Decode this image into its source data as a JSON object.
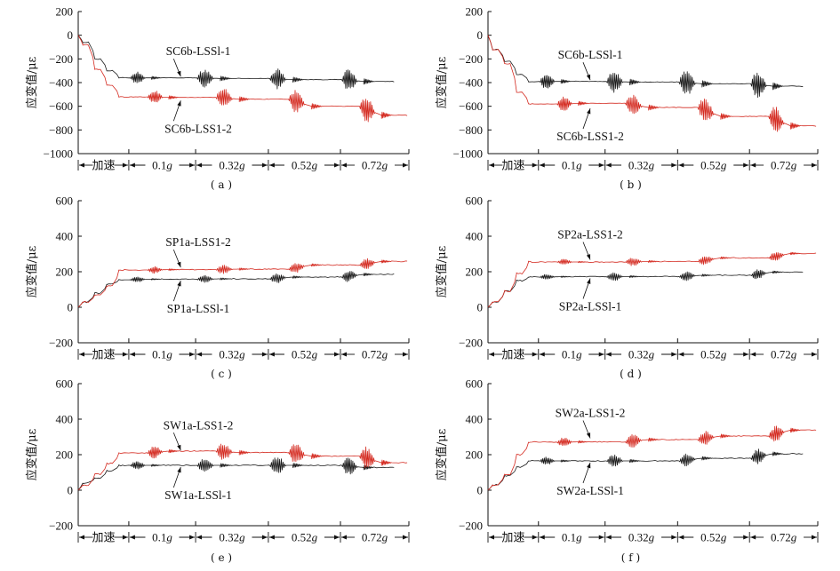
{
  "figure": {
    "ylabel": "应变值/με",
    "phases": [
      "加速",
      "0.1g",
      "0.32g",
      "0.52g",
      "0.72g"
    ],
    "colors": {
      "series1": "#1a1a1a",
      "series2": "#d42a20"
    }
  },
  "chart_data": [
    {
      "id": "a",
      "type": "line",
      "caption": "( a )",
      "ylabel": "应变值/με",
      "ylim": [
        -1000,
        200
      ],
      "yticks": [
        "200",
        "0",
        "-200",
        "-400",
        "-600",
        "-800",
        "-1000"
      ],
      "ytick_values": [
        200,
        0,
        -200,
        -400,
        -600,
        -800,
        -1000
      ],
      "xlabel_segments": [
        "加速",
        "0.1g",
        "0.32g",
        "0.52g",
        "0.72g"
      ],
      "series": [
        {
          "name": "SC6b-LSSl-1",
          "color": "#1a1a1a",
          "start": 0,
          "ramp_levels": [
            -60,
            -200,
            -300,
            -360
          ],
          "phase_levels": [
            -360,
            -365,
            -375,
            -390
          ],
          "burst_amplitude": [
            130,
            200,
            220,
            240
          ],
          "end_value": -395
        },
        {
          "name": "SC6b-LSS1-2",
          "color": "#d42a20",
          "start": 0,
          "ramp_levels": [
            -80,
            -290,
            -420,
            -520
          ],
          "phase_levels": [
            -525,
            -540,
            -600,
            -675
          ],
          "burst_amplitude": [
            150,
            220,
            240,
            280
          ],
          "end_value": -680
        }
      ],
      "annotations": [
        {
          "text": "SC6b-LSSl-1",
          "series": "SC6b-LSSl-1"
        },
        {
          "text": "SC6b-LSS1-2",
          "series": "SC6b-LSS1-2"
        }
      ]
    },
    {
      "id": "b",
      "type": "line",
      "caption": "( b )",
      "ylabel": "应变值/με",
      "ylim": [
        -1000,
        200
      ],
      "yticks": [
        "200",
        "0",
        "-200",
        "-400",
        "-600",
        "-800",
        "-1000"
      ],
      "ytick_values": [
        200,
        0,
        -200,
        -400,
        -600,
        -800,
        -1000
      ],
      "xlabel_segments": [
        "加速",
        "0.1g",
        "0.32g",
        "0.52g",
        "0.72g"
      ],
      "series": [
        {
          "name": "SC6b-LSSl-1",
          "color": "#1a1a1a",
          "start": 0,
          "ramp_levels": [
            -120,
            -220,
            -330,
            -390
          ],
          "phase_levels": [
            -390,
            -395,
            -410,
            -430
          ],
          "burst_amplitude": [
            170,
            250,
            280,
            300
          ],
          "end_value": -435
        },
        {
          "name": "SC6b-LSS1-2",
          "color": "#d42a20",
          "start": 0,
          "ramp_levels": [
            -120,
            -240,
            -480,
            -580
          ],
          "phase_levels": [
            -575,
            -610,
            -685,
            -765
          ],
          "burst_amplitude": [
            170,
            230,
            260,
            280
          ],
          "end_value": -770
        }
      ],
      "annotations": [
        {
          "text": "SC6b-LSSl-1",
          "series": "SC6b-LSSl-1"
        },
        {
          "text": "SC6b-LSS1-2",
          "series": "SC6b-LSS1-2"
        }
      ]
    },
    {
      "id": "c",
      "type": "line",
      "caption": "( c )",
      "ylabel": "应变值/με",
      "ylim": [
        -200,
        600
      ],
      "yticks": [
        "600",
        "400",
        "200",
        "0",
        "-200"
      ],
      "ytick_values": [
        600,
        400,
        200,
        0,
        -200
      ],
      "xlabel_segments": [
        "加速",
        "0.1g",
        "0.32g",
        "0.52g",
        "0.72g"
      ],
      "series": [
        {
          "name": "SP1a-LSSl-1",
          "color": "#1a1a1a",
          "start": 0,
          "ramp_levels": [
            30,
            80,
            130,
            155
          ],
          "phase_levels": [
            158,
            160,
            170,
            185
          ],
          "burst_amplitude": [
            40,
            55,
            70,
            80
          ],
          "end_value": 188
        },
        {
          "name": "SP1a-LSS1-2",
          "color": "#d42a20",
          "start": 0,
          "ramp_levels": [
            30,
            70,
            120,
            210
          ],
          "phase_levels": [
            212,
            215,
            238,
            258
          ],
          "burst_amplitude": [
            50,
            65,
            75,
            85
          ],
          "end_value": 260
        }
      ],
      "annotations": [
        {
          "text": "SP1a-LSS1-2",
          "series": "SP1a-LSS1-2"
        },
        {
          "text": "SP1a-LSSl-1",
          "series": "SP1a-LSSl-1"
        }
      ]
    },
    {
      "id": "d",
      "type": "line",
      "caption": "( d )",
      "ylabel": "应变值/με",
      "ylim": [
        -200,
        600
      ],
      "yticks": [
        "600",
        "400",
        "200",
        "0",
        "-200"
      ],
      "ytick_values": [
        600,
        400,
        200,
        0,
        -200
      ],
      "xlabel_segments": [
        "加速",
        "0.1g",
        "0.32g",
        "0.52g",
        "0.72g"
      ],
      "series": [
        {
          "name": "SP2a-LSSl-1",
          "color": "#1a1a1a",
          "start": 0,
          "ramp_levels": [
            30,
            90,
            150,
            170
          ],
          "phase_levels": [
            172,
            173,
            180,
            198
          ],
          "burst_amplitude": [
            40,
            60,
            65,
            70
          ],
          "end_value": 198
        },
        {
          "name": "SP2a-LSS1-2",
          "color": "#d42a20",
          "start": 0,
          "ramp_levels": [
            30,
            90,
            190,
            255
          ],
          "phase_levels": [
            255,
            258,
            278,
            303
          ],
          "burst_amplitude": [
            40,
            60,
            65,
            70
          ],
          "end_value": 305
        }
      ],
      "annotations": [
        {
          "text": "SP2a-LSS1-2",
          "series": "SP2a-LSS1-2"
        },
        {
          "text": "SP2a-LSSl-1",
          "series": "SP2a-LSSl-1"
        }
      ]
    },
    {
      "id": "e",
      "type": "line",
      "caption": "( e )",
      "ylabel": "应变值/με",
      "ylim": [
        -200,
        600
      ],
      "yticks": [
        "600",
        "400",
        "200",
        "0",
        "-200"
      ],
      "ytick_values": [
        600,
        400,
        200,
        0,
        -200
      ],
      "xlabel_segments": [
        "加速",
        "0.1g",
        "0.32g",
        "0.52g",
        "0.72g"
      ],
      "series": [
        {
          "name": "SW1a-LSSl-1",
          "color": "#1a1a1a",
          "start": 0,
          "ramp_levels": [
            40,
            70,
            110,
            140
          ],
          "phase_levels": [
            140,
            140,
            140,
            128
          ],
          "burst_amplitude": [
            60,
            110,
            130,
            130
          ],
          "end_value": 128
        },
        {
          "name": "SW1a-LSS1-2",
          "color": "#d42a20",
          "start": 0,
          "ramp_levels": [
            30,
            90,
            150,
            210
          ],
          "phase_levels": [
            220,
            212,
            192,
            155
          ],
          "burst_amplitude": [
            90,
            130,
            150,
            160
          ],
          "end_value": 155
        }
      ],
      "annotations": [
        {
          "text": "SW1a-LSS1-2",
          "series": "SW1a-LSS1-2"
        },
        {
          "text": "SW1a-LSSl-1",
          "series": "SW1a-LSSl-1"
        }
      ]
    },
    {
      "id": "f",
      "type": "line",
      "caption": "( f )",
      "ylabel": "应变值/με",
      "ylim": [
        -200,
        600
      ],
      "yticks": [
        "600",
        "400",
        "200",
        "0",
        "-200"
      ],
      "ytick_values": [
        600,
        400,
        200,
        0,
        -200
      ],
      "xlabel_segments": [
        "加速",
        "0.1g",
        "0.32g",
        "0.52g",
        "0.72g"
      ],
      "series": [
        {
          "name": "SW2a-LSSl-1",
          "color": "#1a1a1a",
          "start": 0,
          "ramp_levels": [
            30,
            80,
            130,
            165
          ],
          "phase_levels": [
            165,
            165,
            180,
            205
          ],
          "burst_amplitude": [
            60,
            90,
            100,
            110
          ],
          "end_value": 205
        },
        {
          "name": "SW2a-LSS1-2",
          "color": "#d42a20",
          "start": 0,
          "ramp_levels": [
            30,
            90,
            200,
            270
          ],
          "phase_levels": [
            272,
            285,
            305,
            338
          ],
          "burst_amplitude": [
            70,
            100,
            110,
            120
          ],
          "end_value": 338
        }
      ],
      "annotations": [
        {
          "text": "SW2a-LSS1-2",
          "series": "SW2a-LSS1-2"
        },
        {
          "text": "SW2a-LSSl-1",
          "series": "SW2a-LSSl-1"
        }
      ]
    }
  ]
}
